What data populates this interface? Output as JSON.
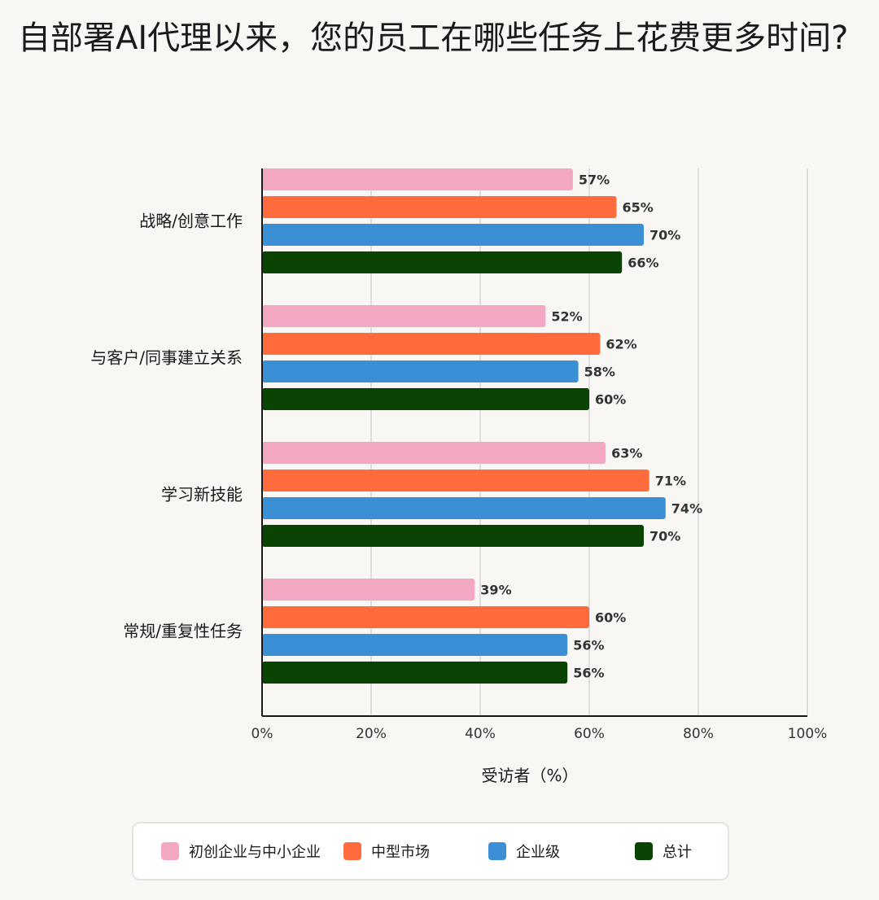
{
  "title": "自部署AI代理以来，您的员工在哪些任务上花费更多时间?",
  "chart_data": {
    "type": "bar",
    "orientation": "horizontal",
    "title": "自部署AI代理以来，您的员工在哪些任务上花费更多时间?",
    "xlabel": "受访者（%）",
    "ylabel": "",
    "xlim": [
      0,
      100
    ],
    "x_ticks": [
      "0%",
      "20%",
      "40%",
      "60%",
      "80%",
      "100%"
    ],
    "grid": "vertical",
    "legend_position": "bottom",
    "categories": [
      "战略/创意工作",
      "与客户/同事建立关系",
      "学习新技能",
      "常规/重复性任务"
    ],
    "series": [
      {
        "name": "初创企业与中小企业",
        "color": "#f4a7c3",
        "values": [
          57,
          52,
          63,
          39
        ],
        "labels": [
          "57%",
          "52%",
          "63%",
          "39%"
        ]
      },
      {
        "name": "中型市场",
        "color": "#ff6b3d",
        "values": [
          65,
          62,
          71,
          60
        ],
        "labels": [
          "65%",
          "62%",
          "71%",
          "60%"
        ]
      },
      {
        "name": "企业级",
        "color": "#3b8fd4",
        "values": [
          70,
          58,
          74,
          56
        ],
        "labels": [
          "70%",
          "58%",
          "74%",
          "56%"
        ]
      },
      {
        "name": "总计",
        "color": "#0a4402",
        "values": [
          66,
          60,
          70,
          56
        ],
        "labels": [
          "66%",
          "60%",
          "70%",
          "56%"
        ]
      }
    ]
  }
}
